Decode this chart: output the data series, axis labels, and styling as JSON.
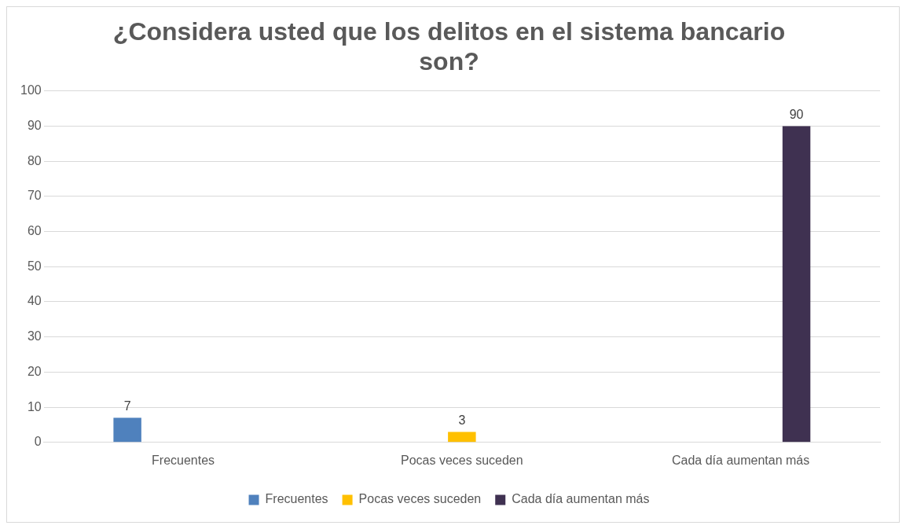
{
  "chart_data": {
    "type": "bar",
    "title": "¿Considera usted que los delitos en el sistema bancario son?",
    "categories": [
      "Frecuentes",
      "Pocas veces suceden",
      "Cada día aumentan más"
    ],
    "series": [
      {
        "name": "Frecuentes",
        "color": "#4f81bd",
        "values": [
          7,
          null,
          null
        ]
      },
      {
        "name": "Pocas veces suceden",
        "color": "#ffc000",
        "values": [
          null,
          3,
          null
        ]
      },
      {
        "name": "Cada día aumentan más",
        "color": "#3f3151",
        "values": [
          null,
          null,
          90
        ]
      }
    ],
    "ylim": [
      0,
      100
    ],
    "yticks": [
      0,
      10,
      20,
      30,
      40,
      50,
      60,
      70,
      80,
      90,
      100
    ],
    "grid": "y",
    "legend": "bottom",
    "data_labels": true
  }
}
